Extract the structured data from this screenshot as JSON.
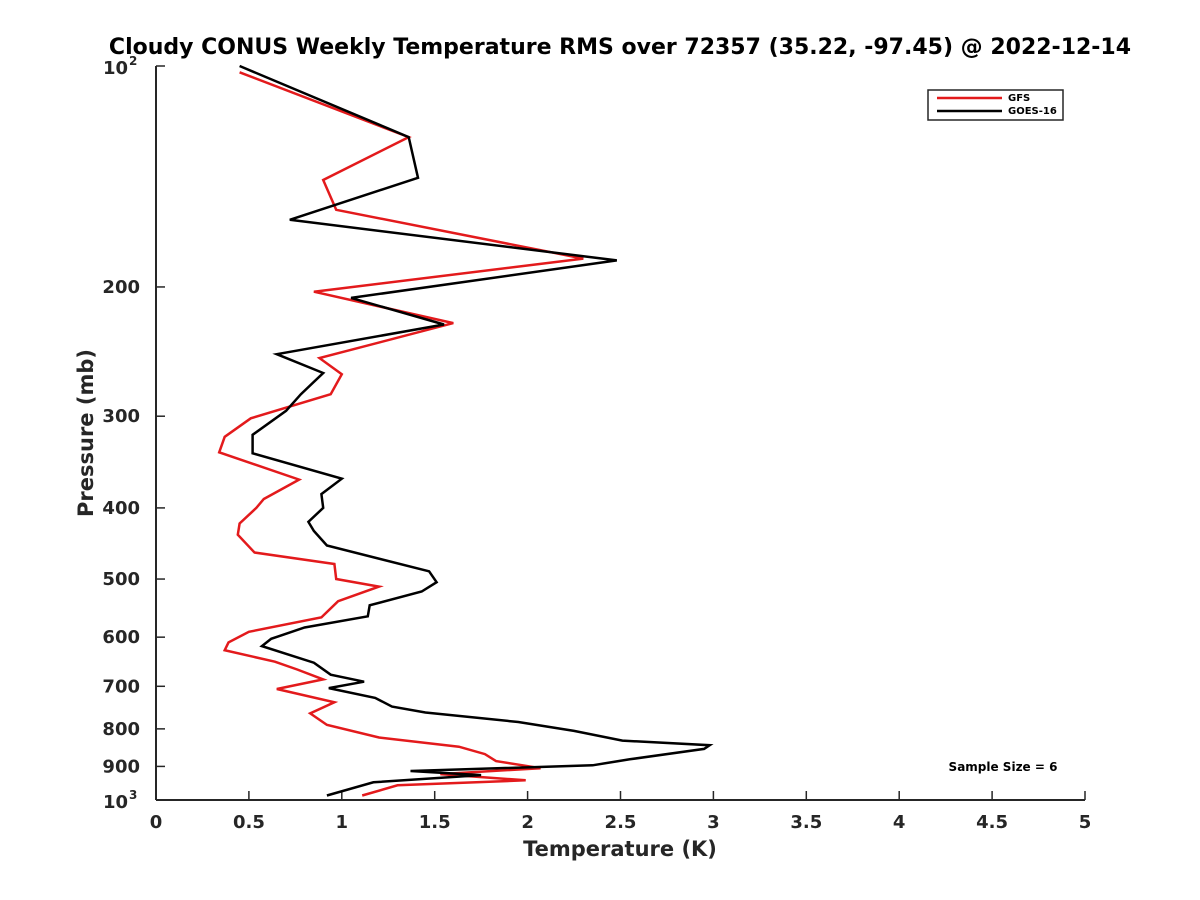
{
  "chart_data": {
    "type": "line",
    "title": "Cloudy CONUS Weekly Temperature RMS over 72357 (35.22, -97.45) @ 2022-12-14",
    "xlabel": "Temperature (K)",
    "ylabel": "Pressure (mb)",
    "xlim": [
      0,
      5
    ],
    "ylim": [
      100,
      1000
    ],
    "y_scale": "log",
    "y_reversed": true,
    "x_ticks": [
      "0",
      "0.5",
      "1",
      "1.5",
      "2",
      "2.5",
      "3",
      "3.5",
      "4",
      "4.5",
      "5"
    ],
    "y_ticks": [
      {
        "value": 100,
        "base": "10",
        "exp": "2"
      },
      {
        "value": 200,
        "label": "200"
      },
      {
        "value": 300,
        "label": "300"
      },
      {
        "value": 400,
        "label": "400"
      },
      {
        "value": 500,
        "label": "500"
      },
      {
        "value": 600,
        "label": "600"
      },
      {
        "value": 700,
        "label": "700"
      },
      {
        "value": 800,
        "label": "800"
      },
      {
        "value": 900,
        "label": "900"
      },
      {
        "value": 1000,
        "base": "10",
        "exp": "3"
      }
    ],
    "grid": false,
    "legend_position": "top-right",
    "series": [
      {
        "name": "GFS",
        "color": "#e31a1c",
        "points": [
          [
            0.45,
            102
          ],
          [
            1.36,
            125
          ],
          [
            0.9,
            143
          ],
          [
            0.97,
            157
          ],
          [
            2.3,
            183
          ],
          [
            0.85,
            203
          ],
          [
            1.6,
            224
          ],
          [
            0.88,
            250
          ],
          [
            1.0,
            263
          ],
          [
            0.94,
            280
          ],
          [
            0.51,
            302
          ],
          [
            0.37,
            320
          ],
          [
            0.34,
            336
          ],
          [
            0.77,
            366
          ],
          [
            0.58,
            389
          ],
          [
            0.54,
            400
          ],
          [
            0.45,
            420
          ],
          [
            0.44,
            435
          ],
          [
            0.53,
            460
          ],
          [
            0.96,
            477
          ],
          [
            0.97,
            500
          ],
          [
            1.2,
            512
          ],
          [
            0.98,
            536
          ],
          [
            0.89,
            564
          ],
          [
            0.5,
            590
          ],
          [
            0.39,
            610
          ],
          [
            0.37,
            625
          ],
          [
            0.64,
            648
          ],
          [
            0.76,
            664
          ],
          [
            0.9,
            685
          ],
          [
            0.65,
            706
          ],
          [
            0.96,
            736
          ],
          [
            0.83,
            762
          ],
          [
            0.92,
            790
          ],
          [
            1.2,
            822
          ],
          [
            1.63,
            846
          ],
          [
            1.77,
            866
          ],
          [
            1.83,
            885
          ],
          [
            2.07,
            905
          ],
          [
            1.53,
            922
          ],
          [
            1.99,
            940
          ],
          [
            1.3,
            955
          ],
          [
            1.11,
            986
          ]
        ]
      },
      {
        "name": "GOES-16",
        "color": "#000000",
        "points": [
          [
            0.45,
            100
          ],
          [
            1.36,
            125
          ],
          [
            1.41,
            142
          ],
          [
            0.72,
            162
          ],
          [
            2.48,
            184
          ],
          [
            1.05,
            207
          ],
          [
            1.55,
            225
          ],
          [
            0.65,
            247
          ],
          [
            0.9,
            262
          ],
          [
            0.78,
            280
          ],
          [
            0.7,
            295
          ],
          [
            0.52,
            318
          ],
          [
            0.52,
            337
          ],
          [
            1.0,
            365
          ],
          [
            0.89,
            383
          ],
          [
            0.9,
            400
          ],
          [
            0.82,
            418
          ],
          [
            0.85,
            430
          ],
          [
            0.92,
            450
          ],
          [
            1.47,
            488
          ],
          [
            1.51,
            505
          ],
          [
            1.43,
            520
          ],
          [
            1.15,
            543
          ],
          [
            1.14,
            562
          ],
          [
            0.8,
            582
          ],
          [
            0.62,
            603
          ],
          [
            0.57,
            617
          ],
          [
            0.85,
            650
          ],
          [
            0.94,
            675
          ],
          [
            1.12,
            690
          ],
          [
            0.93,
            704
          ],
          [
            1.18,
            726
          ],
          [
            1.27,
            746
          ],
          [
            1.45,
            760
          ],
          [
            1.95,
            783
          ],
          [
            2.25,
            805
          ],
          [
            2.51,
            830
          ],
          [
            2.98,
            842
          ],
          [
            2.95,
            852
          ],
          [
            2.55,
            880
          ],
          [
            2.35,
            897
          ],
          [
            1.37,
            913
          ],
          [
            1.75,
            925
          ],
          [
            1.17,
            946
          ],
          [
            0.92,
            986
          ]
        ]
      }
    ],
    "annotation": "Sample Size = 6"
  }
}
